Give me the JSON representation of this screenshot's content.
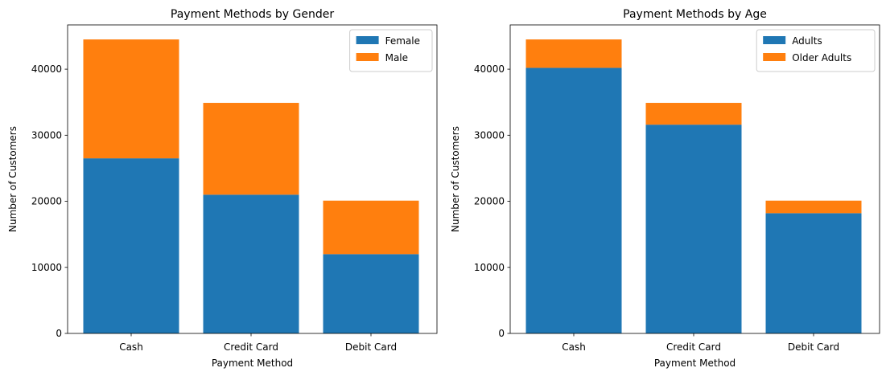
{
  "chart_data": [
    {
      "type": "bar",
      "stacked": true,
      "title": "Payment Methods by Gender",
      "xlabel": "Payment Method",
      "ylabel": "Number of Customers",
      "categories": [
        "Cash",
        "Credit Card",
        "Debit Card"
      ],
      "series": [
        {
          "name": "Female",
          "color": "#1f77b4",
          "values": [
            26500,
            21000,
            12000
          ]
        },
        {
          "name": "Male",
          "color": "#ff7f0e",
          "values": [
            18000,
            13900,
            8100
          ]
        }
      ],
      "ylim": [
        0,
        46700
      ],
      "yticks": [
        0,
        10000,
        20000,
        30000,
        40000
      ],
      "legend": "top-right",
      "grid": false
    },
    {
      "type": "bar",
      "stacked": true,
      "title": "Payment Methods by Age",
      "xlabel": "Payment Method",
      "ylabel": "Number of Customers",
      "categories": [
        "Cash",
        "Credit Card",
        "Debit Card"
      ],
      "series": [
        {
          "name": "Adults",
          "color": "#1f77b4",
          "values": [
            40200,
            31600,
            18200
          ]
        },
        {
          "name": "Older Adults",
          "color": "#ff7f0e",
          "values": [
            4300,
            3300,
            1900
          ]
        }
      ],
      "ylim": [
        0,
        46700
      ],
      "yticks": [
        0,
        10000,
        20000,
        30000,
        40000
      ],
      "legend": "top-right",
      "grid": false
    }
  ]
}
